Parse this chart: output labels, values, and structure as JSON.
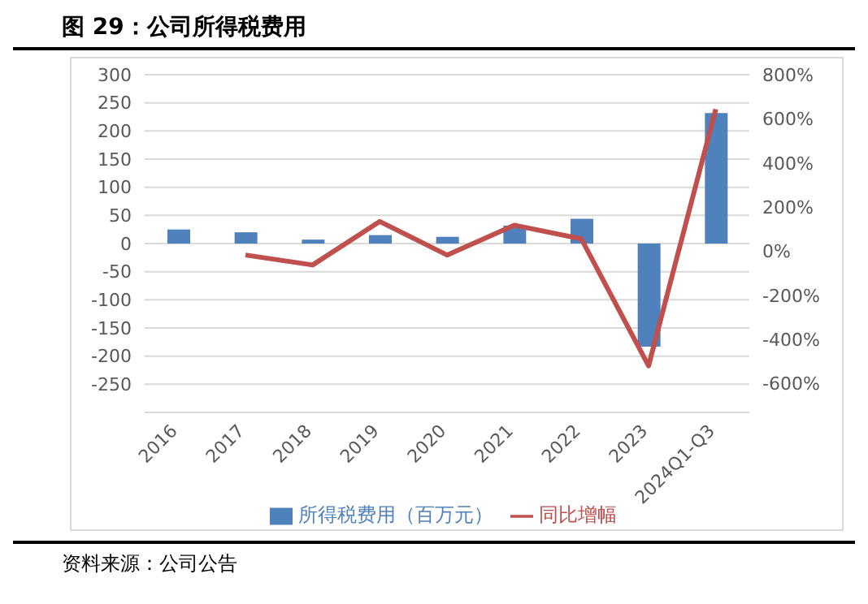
{
  "chart_data": {
    "type": "bar",
    "title": "图 29：公司所得税费用",
    "annotations": [
      "资料来源：公司公告"
    ],
    "categories": [
      "2016",
      "2017",
      "2018",
      "2019",
      "2020",
      "2021",
      "2022",
      "2023",
      "2024Q1-Q3"
    ],
    "series": [
      {
        "name": "所得税费用（百万元）",
        "color": "#4f81bd",
        "values": [
          25,
          20,
          7,
          15,
          12,
          32,
          44,
          -183,
          232
        ]
      },
      {
        "name": "同比增幅",
        "type": "line",
        "axis": "y2",
        "color": "#c0504d",
        "values": [
          null,
          -17,
          -62,
          135,
          -17,
          118,
          56,
          -519,
          644
        ]
      }
    ],
    "ylim": [
      -300,
      300
    ],
    "yticks": [
      -250,
      -200,
      -150,
      -100,
      -50,
      0,
      50,
      100,
      150,
      200,
      250,
      300
    ],
    "y2lim": [
      -730,
      800
    ],
    "y2ticks": [
      {
        "value": -600,
        "label": "-600%"
      },
      {
        "value": -400,
        "label": "-400%"
      },
      {
        "value": -200,
        "label": "-200%"
      },
      {
        "value": 0,
        "label": "0%"
      },
      {
        "value": 200,
        "label": "200%"
      },
      {
        "value": 400,
        "label": "400%"
      },
      {
        "value": 600,
        "label": "600%"
      },
      {
        "value": 800,
        "label": "800%"
      }
    ],
    "grid": "y",
    "legend": "bottom",
    "marker": "none"
  }
}
